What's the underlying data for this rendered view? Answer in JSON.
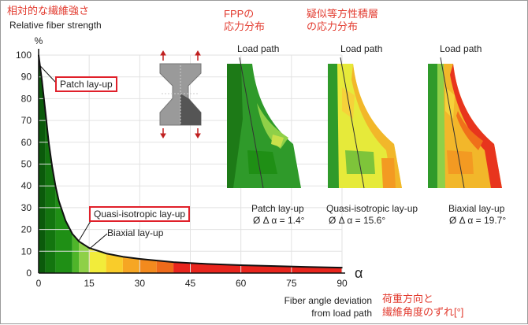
{
  "header": {
    "ylabel_jp": "相対的な繊維強さ",
    "ylabel_en": "Relative fiber strength",
    "fpp_title_line1": "FPPの",
    "fpp_title_line2": "応力分布",
    "quasi_title_line1": "疑似等方性積層",
    "quasi_title_line2": "の応力分布"
  },
  "annotations": {
    "patch_box": "Patch lay-up",
    "quasi_box": "Quasi-isotropic lay-up",
    "biaxial_label": "Biaxial lay-up",
    "xlabel_line1": "Fiber angle deviation",
    "xlabel_line2": "from load path",
    "xlabel_jp_line1": "荷重方向と",
    "xlabel_jp_line2": "繊維角度のずれ[°]"
  },
  "chart_data": {
    "type": "area",
    "title": "",
    "ylabel": "%",
    "xlabel": "α",
    "xlim": [
      0,
      90
    ],
    "ylim": [
      0,
      100
    ],
    "x_ticks": [
      0,
      15,
      30,
      45,
      60,
      75,
      90
    ],
    "y_ticks": [
      0,
      10,
      20,
      30,
      40,
      50,
      60,
      70,
      80,
      90,
      100
    ],
    "grid": true,
    "series": [
      {
        "x": [
          0,
          1,
          2,
          3,
          4,
          5,
          6,
          8,
          10,
          12,
          15,
          20,
          25,
          30,
          40,
          50,
          60,
          70,
          80,
          90
        ],
        "y": [
          100,
          88,
          74,
          60,
          49,
          40,
          33,
          24,
          18,
          14.5,
          11.5,
          9,
          7.5,
          6.5,
          5,
          4.2,
          3.6,
          3.2,
          2.8,
          2.5
        ]
      }
    ],
    "color_bands": [
      {
        "from": 0,
        "to": 2,
        "color": "#0b5a0b"
      },
      {
        "from": 2,
        "to": 5,
        "color": "#13750f"
      },
      {
        "from": 5,
        "to": 10,
        "color": "#1f8f15"
      },
      {
        "from": 10,
        "to": 12,
        "color": "#4fb52a"
      },
      {
        "from": 12,
        "to": 15,
        "color": "#8fd048"
      },
      {
        "from": 15,
        "to": 20,
        "color": "#f2ec3a"
      },
      {
        "from": 20,
        "to": 25,
        "color": "#f9cc2a"
      },
      {
        "from": 25,
        "to": 30,
        "color": "#f6a623"
      },
      {
        "from": 30,
        "to": 35,
        "color": "#f38a1e"
      },
      {
        "from": 35,
        "to": 40,
        "color": "#ee6a1a"
      },
      {
        "from": 40,
        "to": 90,
        "color": "#e8251d"
      }
    ]
  },
  "stress_panels": [
    {
      "load_path": "Load path",
      "caption": "Patch lay-up",
      "angle": "Ø Δ α = 1.4°"
    },
    {
      "load_path": "Load path",
      "caption": "Quasi-isotropic lay-up",
      "angle": "Ø Δ α = 15.6°"
    },
    {
      "load_path": "Load path",
      "caption": "Biaxial lay-up",
      "angle": "Ø Δ α = 19.7°"
    }
  ]
}
